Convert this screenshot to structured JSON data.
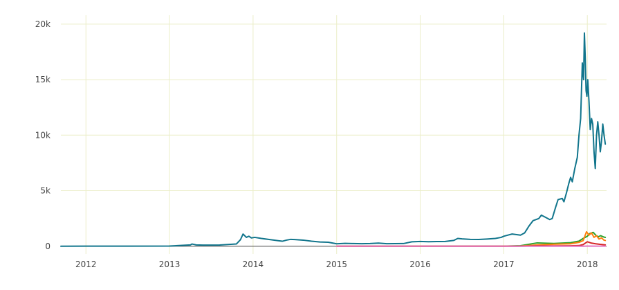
{
  "chart_data": {
    "type": "line",
    "title": "",
    "xlabel": "",
    "ylabel": "",
    "xlim": [
      2011.7,
      2018.23
    ],
    "ylim": [
      -700,
      20800
    ],
    "x_ticks": [
      {
        "value": 2012,
        "label": "2012"
      },
      {
        "value": 2013,
        "label": "2013"
      },
      {
        "value": 2014,
        "label": "2014"
      },
      {
        "value": 2015,
        "label": "2015"
      },
      {
        "value": 2016,
        "label": "2016"
      },
      {
        "value": 2017,
        "label": "2017"
      },
      {
        "value": 2018,
        "label": "2018"
      }
    ],
    "y_ticks": [
      {
        "value": 0,
        "label": "0"
      },
      {
        "value": 5000,
        "label": "5k"
      },
      {
        "value": 10000,
        "label": "10k"
      },
      {
        "value": 15000,
        "label": "15k"
      },
      {
        "value": 20000,
        "label": "20k"
      }
    ],
    "grid": true,
    "legend": "none",
    "colors": {
      "grid": "#ebeec8",
      "zeroline": "#444444",
      "axis_text": "#444444"
    },
    "series": [
      {
        "color": "#11758c",
        "x": [
          2011.7,
          2012.0,
          2012.5,
          2013.0,
          2013.25,
          2013.27,
          2013.32,
          2013.4,
          2013.6,
          2013.8,
          2013.85,
          2013.88,
          2013.92,
          2013.95,
          2013.98,
          2014.02,
          2014.1,
          2014.2,
          2014.3,
          2014.35,
          2014.4,
          2014.45,
          2014.5,
          2014.6,
          2014.7,
          2014.8,
          2014.9,
          2015.0,
          2015.1,
          2015.2,
          2015.3,
          2015.4,
          2015.5,
          2015.6,
          2015.8,
          2015.9,
          2016.0,
          2016.1,
          2016.2,
          2016.3,
          2016.4,
          2016.45,
          2016.5,
          2016.6,
          2016.7,
          2016.8,
          2016.9,
          2016.97,
          2017.0,
          2017.05,
          2017.1,
          2017.2,
          2017.25,
          2017.3,
          2017.35,
          2017.42,
          2017.45,
          2017.5,
          2017.55,
          2017.58,
          2017.62,
          2017.65,
          2017.7,
          2017.72,
          2017.75,
          2017.78,
          2017.8,
          2017.82,
          2017.85,
          2017.88,
          2017.9,
          2017.92,
          2017.94,
          2017.955,
          2017.965,
          2017.975,
          2017.985,
          2017.995,
          2018.005,
          2018.02,
          2018.035,
          2018.05,
          2018.065,
          2018.08,
          2018.095,
          2018.11,
          2018.125,
          2018.14,
          2018.155,
          2018.17,
          2018.185,
          2018.2,
          2018.215
        ],
        "y": [
          5,
          6,
          10,
          15,
          120,
          200,
          120,
          100,
          110,
          200,
          600,
          1100,
          800,
          900,
          750,
          800,
          700,
          600,
          500,
          450,
          550,
          620,
          600,
          550,
          450,
          380,
          360,
          220,
          260,
          240,
          230,
          240,
          280,
          230,
          240,
          400,
          430,
          410,
          420,
          430,
          520,
          700,
          660,
          620,
          610,
          650,
          700,
          800,
          900,
          1000,
          1100,
          1000,
          1200,
          1800,
          2300,
          2500,
          2800,
          2600,
          2400,
          2500,
          3500,
          4200,
          4300,
          4000,
          4800,
          5700,
          6200,
          5800,
          7000,
          8000,
          10000,
          11500,
          16500,
          15000,
          19200,
          17000,
          14000,
          13500,
          15000,
          13000,
          10500,
          11500,
          11000,
          8500,
          7000,
          10000,
          11200,
          10000,
          8500,
          9500,
          11000,
          10000,
          9200
        ]
      },
      {
        "color": "#2ca02c",
        "x": [
          2015.0,
          2016.0,
          2016.5,
          2017.0,
          2017.2,
          2017.4,
          2017.6,
          2017.8,
          2017.9,
          2017.95,
          2018.0,
          2018.03,
          2018.07,
          2018.1,
          2018.13,
          2018.16,
          2018.2,
          2018.215
        ],
        "y": [
          1,
          5,
          8,
          10,
          50,
          300,
          250,
          320,
          460,
          700,
          900,
          1150,
          1250,
          1000,
          850,
          950,
          820,
          800
        ]
      },
      {
        "color": "#ff7f0e",
        "x": [
          2015.0,
          2016.0,
          2016.5,
          2017.0,
          2017.2,
          2017.4,
          2017.6,
          2017.8,
          2017.9,
          2017.95,
          2017.97,
          2017.99,
          2018.02,
          2018.05,
          2018.08,
          2018.11,
          2018.14,
          2018.17,
          2018.2,
          2018.215
        ],
        "y": [
          1,
          3,
          4,
          5,
          20,
          120,
          180,
          220,
          350,
          500,
          900,
          1300,
          1000,
          1200,
          800,
          950,
          650,
          750,
          550,
          520
        ]
      },
      {
        "color": "#d62728",
        "x": [
          2015.0,
          2016.0,
          2016.5,
          2017.0,
          2017.2,
          2017.4,
          2017.6,
          2017.8,
          2017.9,
          2017.95,
          2017.98,
          2018.0,
          2018.05,
          2018.1,
          2018.15,
          2018.2,
          2018.215
        ],
        "y": [
          0,
          0,
          0,
          0,
          2,
          40,
          30,
          40,
          60,
          150,
          300,
          400,
          280,
          220,
          170,
          130,
          120
        ]
      },
      {
        "color": "#e377c2",
        "x": [
          2015.0,
          2016.0,
          2017.0,
          2017.8,
          2017.95,
          2018.0,
          2018.1,
          2018.215
        ],
        "y": [
          0,
          0,
          0,
          1,
          3,
          20,
          10,
          8
        ]
      }
    ]
  }
}
